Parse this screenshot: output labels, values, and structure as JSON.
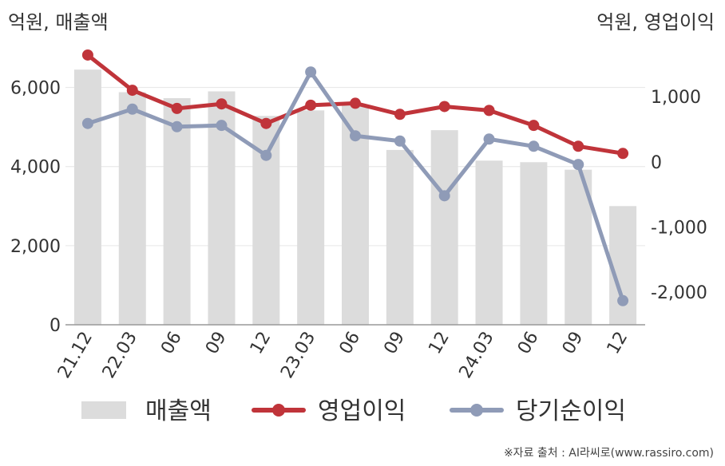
{
  "chart_data": {
    "type": "bar+line",
    "categories": [
      "21.12",
      "22.03",
      "06",
      "09",
      "12",
      "23.03",
      "06",
      "09",
      "12",
      "24.03",
      "06",
      "09",
      "12"
    ],
    "left_axis": {
      "label": "억원, 매출액",
      "ylim": [
        0,
        7000
      ],
      "ticks": [
        0,
        2000,
        4000,
        6000
      ],
      "tick_labels": [
        "0",
        "2,000",
        "4,000",
        "6,000"
      ]
    },
    "right_axis": {
      "label": "억원, 영업이익",
      "ylim": [
        -2500,
        1750
      ],
      "ticks": [
        -2000,
        -1000,
        0,
        1000
      ],
      "tick_labels": [
        "-2,000",
        "-1,000",
        "0",
        "1,000"
      ]
    },
    "series": [
      {
        "name": "매출액",
        "kind": "bar",
        "axis": "left",
        "color": "#dcdcdc",
        "values": [
          6450,
          5880,
          5730,
          5900,
          5280,
          5420,
          5560,
          4420,
          4920,
          4150,
          4110,
          3920,
          3000
        ]
      },
      {
        "name": "영업이익",
        "kind": "line",
        "axis": "right",
        "color": "#c0343a",
        "values": [
          1640,
          1100,
          820,
          890,
          590,
          870,
          900,
          730,
          850,
          790,
          560,
          240,
          130
        ]
      },
      {
        "name": "당기순이익",
        "kind": "line",
        "axis": "right",
        "color": "#8f9bb7",
        "values": [
          590,
          810,
          540,
          560,
          100,
          1380,
          400,
          320,
          -520,
          350,
          240,
          -40,
          -2130
        ]
      }
    ],
    "grid": true,
    "legend_position": "bottom"
  },
  "source_note": "※자료 출처 : AI라씨로(www.rassiro.com)"
}
